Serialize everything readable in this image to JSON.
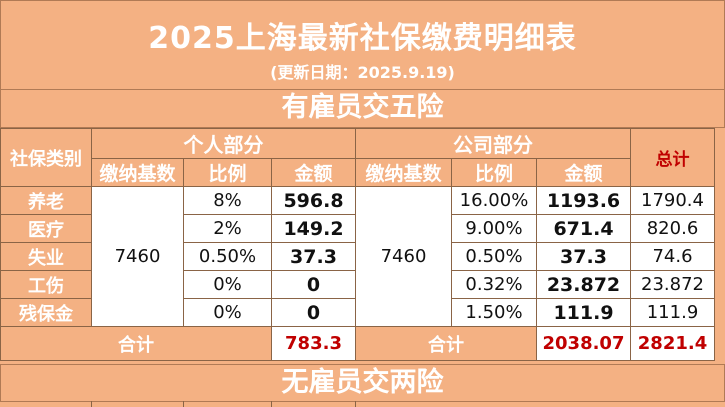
{
  "title": "2025上海最新社保缴费明细表",
  "subtitle": "(更新日期：2025.9.19)",
  "section1": "有雇员交五险",
  "section2": "无雇员交两险",
  "headers": {
    "category": "社保类别",
    "personal": "个人部分",
    "company": "公司部分",
    "base": "缴纳基数",
    "ratio": "比例",
    "amount": "金额",
    "total": "总计"
  },
  "base_personal": "7460",
  "base_company": "7460",
  "rows": [
    {
      "name": "养老",
      "p_ratio": "8%",
      "p_amount": "596.8",
      "c_ratio": "16.00%",
      "c_amount": "1193.6",
      "total": "1790.4"
    },
    {
      "name": "医疗",
      "p_ratio": "2%",
      "p_amount": "149.2",
      "c_ratio": "9.00%",
      "c_amount": "671.4",
      "total": "820.6"
    },
    {
      "name": "失业",
      "p_ratio": "0.50%",
      "p_amount": "37.3",
      "c_ratio": "0.50%",
      "c_amount": "37.3",
      "total": "74.6"
    },
    {
      "name": "工伤",
      "p_ratio": "0%",
      "p_amount": "0",
      "c_ratio": "0.32%",
      "c_amount": "23.872",
      "total": "23.872"
    },
    {
      "name": "残保金",
      "p_ratio": "0%",
      "p_amount": "0",
      "c_ratio": "1.50%",
      "c_amount": "111.9",
      "total": "111.9"
    }
  ],
  "totals": {
    "p_label": "合计",
    "p_value": "783.3",
    "c_label": "合计",
    "c_value": "2038.07",
    "grand": "2821.4"
  }
}
